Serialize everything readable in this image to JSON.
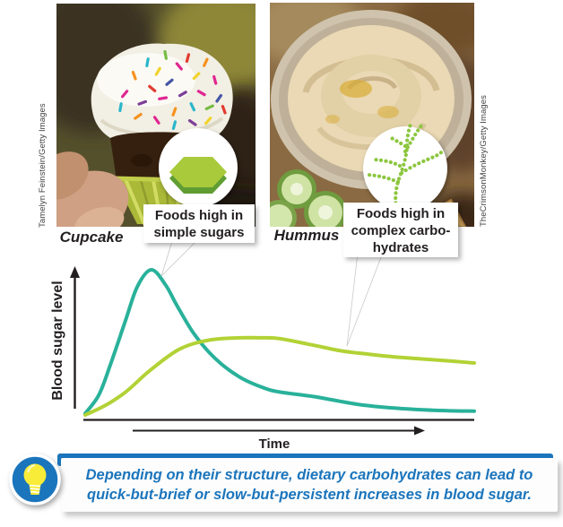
{
  "photos": {
    "left": {
      "label": "Cupcake",
      "credit": "Tamelyn Feinstein/Getty Images"
    },
    "right": {
      "label": "Hummus",
      "credit": "TheCrimsonMonkey/Getty Images"
    }
  },
  "callouts": {
    "simple": {
      "lines": [
        "Foods high in",
        "simple sugars"
      ],
      "icon": "hexagon-monosaccharide-icon"
    },
    "complex": {
      "lines": [
        "Foods high in",
        "complex carbo-",
        "hydrates"
      ],
      "icon": "branched-polysaccharide-icon"
    }
  },
  "chart_data": {
    "type": "line",
    "title": "",
    "xlabel": "Time",
    "ylabel": "Blood sugar level",
    "xlim": [
      0,
      100
    ],
    "ylim": [
      0,
      100
    ],
    "grid": false,
    "legend": "none (curves identified by speech-bubble callouts)",
    "axes_note": "qualitative sketch graph - no numeric tick labels shown",
    "series": [
      {
        "name": "simple sugars (cupcake) - quick-but-brief rise",
        "color": "#29b19a",
        "x": [
          0,
          3.5,
          6.5,
          10.4,
          13.4,
          17,
          20.7,
          23.5,
          28,
          33.4,
          39.6,
          45.6,
          50,
          58.8,
          70,
          79.5,
          90,
          100
        ],
        "y": [
          1,
          13,
          33,
          62,
          84,
          95,
          85,
          72,
          53,
          37,
          25,
          18,
          15,
          12,
          7,
          4.5,
          3,
          2.5
        ]
      },
      {
        "name": "complex carbohydrates (hummus) - slow-but-persistent rise",
        "color": "#b2d235",
        "x": [
          0,
          5,
          10.4,
          16.6,
          24.2,
          31.8,
          39.6,
          45.6,
          50,
          58,
          65.7,
          72,
          79.5,
          93,
          100
        ],
        "y": [
          0,
          6,
          15,
          29,
          43,
          49,
          50.5,
          50.5,
          50,
          46,
          42,
          40,
          38,
          35.5,
          34
        ]
      }
    ]
  },
  "caption": {
    "lines": [
      "Depending on their structure, dietary carbohydrates can lead to",
      "quick-but-brief or slow-but-persistent increases in blood sugar."
    ],
    "icon": "lightbulb-icon"
  },
  "colors": {
    "accent_blue": "#1b75bc",
    "curve_teal": "#29b19a",
    "curve_green": "#b2d235",
    "hexagon_top_green": "#a8ca3b",
    "hexagon_side_green": "#5f9d33",
    "polysaccharide_dot_green": "#8cc63e",
    "bulb_yellow": "#f8ec39",
    "axis_black": "#231f20"
  }
}
